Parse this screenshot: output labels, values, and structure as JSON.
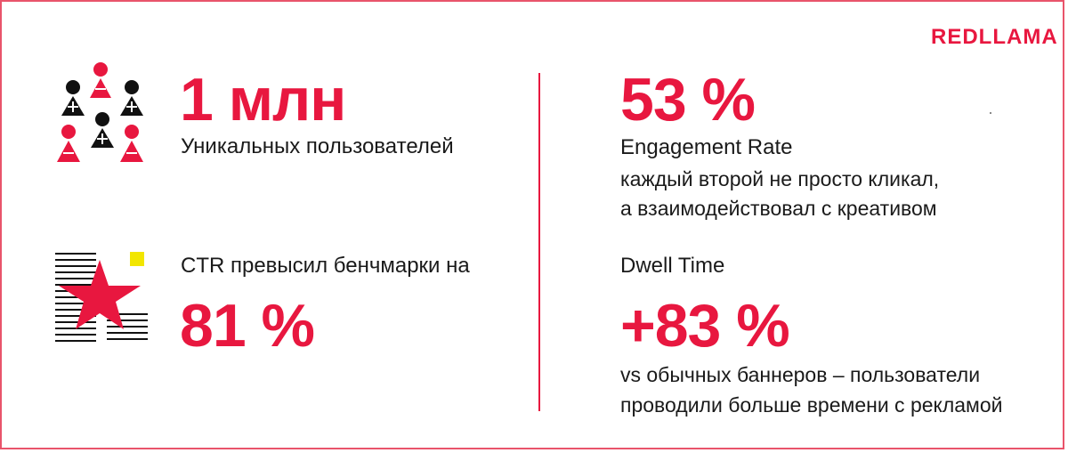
{
  "brand": {
    "logo_text": "REDLLAMA"
  },
  "colors": {
    "accent": "#e8173f",
    "border": "#e9546b",
    "dark": "#1a1a1a",
    "highlight": "#f2e600"
  },
  "left": {
    "users": {
      "icon": "people-group-icon",
      "value": "1 млн",
      "caption": "Уникальных пользователей"
    },
    "ctr": {
      "icon": "star-document-icon",
      "caption": "CTR превысил бенчмарки на",
      "value": "81 %"
    }
  },
  "right": {
    "engagement": {
      "value": "53 %",
      "title": "Engagement Rate",
      "line1": "каждый второй не просто кликал,",
      "line2": "а взаимодействовал с креативом"
    },
    "dwell": {
      "title": "Dwell Time",
      "value": "+83 %",
      "line1": "vs обычных баннеров – пользователи",
      "line2": "проводили больше времени с рекламой"
    }
  }
}
